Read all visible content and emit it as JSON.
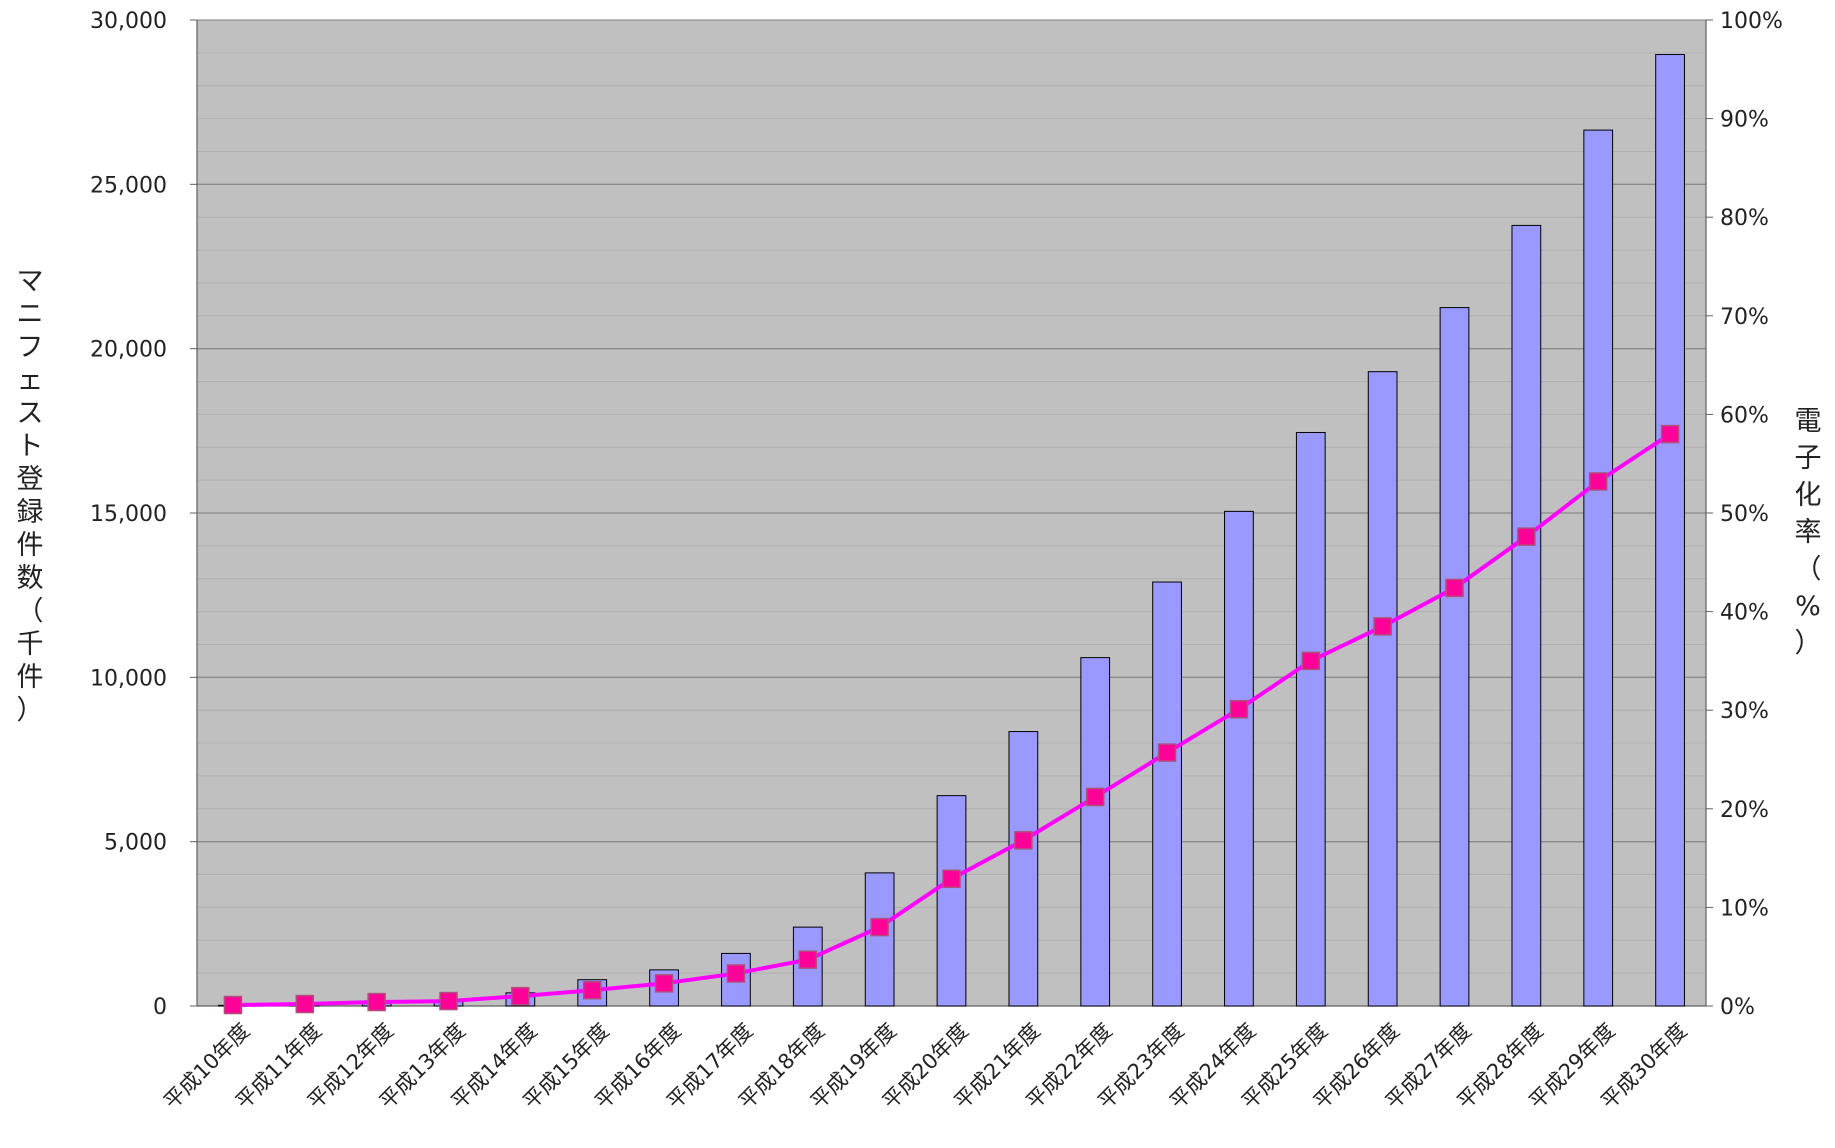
{
  "chart_data": {
    "type": "bar+line",
    "title": "",
    "categories": [
      "平成10年度",
      "平成11年度",
      "平成12年度",
      "平成13年度",
      "平成14年度",
      "平成15年度",
      "平成16年度",
      "平成17年度",
      "平成18年度",
      "平成19年度",
      "平成20年度",
      "平成21年度",
      "平成22年度",
      "平成23年度",
      "平成24年度",
      "平成25年度",
      "平成26年度",
      "平成27年度",
      "平成28年度",
      "平成29年度",
      "平成30年度"
    ],
    "y_left": {
      "label": "マニフェスト登録件数（千件）",
      "range": [
        0,
        30000
      ],
      "ticks": [
        "0",
        "5,000",
        "10,000",
        "15,000",
        "20,000",
        "25,000",
        "30,000"
      ]
    },
    "y_right": {
      "label": "電子化率（%）",
      "range": [
        0,
        100
      ],
      "ticks": [
        "0%",
        "10%",
        "20%",
        "30%",
        "40%",
        "50%",
        "60%",
        "70%",
        "80%",
        "90%",
        "100%"
      ]
    },
    "series": [
      {
        "type": "bar",
        "axis": "left",
        "color": "#9999ff",
        "values": [
          20,
          60,
          100,
          150,
          400,
          800,
          1100,
          1600,
          2400,
          4050,
          6400,
          8350,
          10600,
          12900,
          15050,
          17450,
          19300,
          21250,
          23750,
          26650,
          28950
        ]
      },
      {
        "type": "line",
        "axis": "right",
        "color": "#ff00ff",
        "marker_color": "#ff0099",
        "values": [
          0.1,
          0.2,
          0.4,
          0.5,
          1.0,
          1.6,
          2.3,
          3.3,
          4.7,
          8.0,
          12.9,
          16.8,
          21.2,
          25.7,
          30.1,
          35.0,
          38.5,
          42.4,
          47.6,
          53.2,
          58.0
        ]
      }
    ],
    "grid": true,
    "plot_background": "#c0c0c0",
    "legend": "none"
  }
}
